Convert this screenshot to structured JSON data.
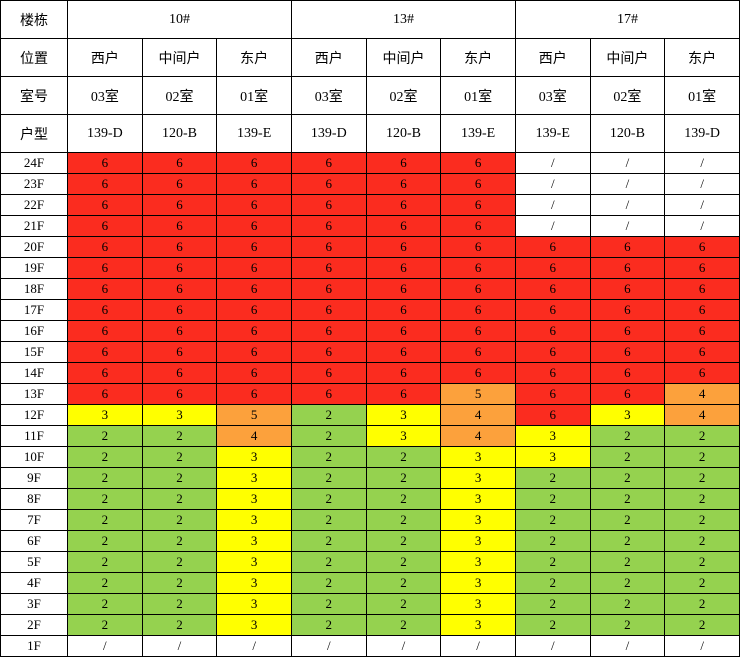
{
  "colors": {
    "red": "#FB2C1F",
    "yellow": "#FFFF00",
    "green": "#95D24F",
    "orange": "#FCA13C",
    "white": "#FFFFFF",
    "border": "#000000"
  },
  "chart_data": {
    "type": "table",
    "header": {
      "row_labels": [
        "楼栋",
        "位置",
        "室号",
        "户型"
      ],
      "buildings": [
        {
          "name": "10#",
          "colspan": 3
        },
        {
          "name": "13#",
          "colspan": 3
        },
        {
          "name": "17#",
          "colspan": 3
        }
      ],
      "positions": [
        "西户",
        "中间户",
        "东户",
        "西户",
        "中间户",
        "东户",
        "西户",
        "中间户",
        "东户"
      ],
      "rooms": [
        "03室",
        "02室",
        "01室",
        "03室",
        "02室",
        "01室",
        "03室",
        "02室",
        "01室"
      ],
      "units": [
        "139-D",
        "120-B",
        "139-E",
        "139-D",
        "120-B",
        "139-E",
        "139-E",
        "120-B",
        "139-D"
      ]
    },
    "value_colors": {
      "2": "green",
      "3": "yellow",
      "4": "orange",
      "5": "orange",
      "6": "red",
      "/": "white"
    },
    "rows": [
      {
        "floor": "24F",
        "values": [
          "6",
          "6",
          "6",
          "6",
          "6",
          "6",
          "/",
          "/",
          "/"
        ]
      },
      {
        "floor": "23F",
        "values": [
          "6",
          "6",
          "6",
          "6",
          "6",
          "6",
          "/",
          "/",
          "/"
        ]
      },
      {
        "floor": "22F",
        "values": [
          "6",
          "6",
          "6",
          "6",
          "6",
          "6",
          "/",
          "/",
          "/"
        ]
      },
      {
        "floor": "21F",
        "values": [
          "6",
          "6",
          "6",
          "6",
          "6",
          "6",
          "/",
          "/",
          "/"
        ]
      },
      {
        "floor": "20F",
        "values": [
          "6",
          "6",
          "6",
          "6",
          "6",
          "6",
          "6",
          "6",
          "6"
        ]
      },
      {
        "floor": "19F",
        "values": [
          "6",
          "6",
          "6",
          "6",
          "6",
          "6",
          "6",
          "6",
          "6"
        ]
      },
      {
        "floor": "18F",
        "values": [
          "6",
          "6",
          "6",
          "6",
          "6",
          "6",
          "6",
          "6",
          "6"
        ]
      },
      {
        "floor": "17F",
        "values": [
          "6",
          "6",
          "6",
          "6",
          "6",
          "6",
          "6",
          "6",
          "6"
        ]
      },
      {
        "floor": "16F",
        "values": [
          "6",
          "6",
          "6",
          "6",
          "6",
          "6",
          "6",
          "6",
          "6"
        ]
      },
      {
        "floor": "15F",
        "values": [
          "6",
          "6",
          "6",
          "6",
          "6",
          "6",
          "6",
          "6",
          "6"
        ]
      },
      {
        "floor": "14F",
        "values": [
          "6",
          "6",
          "6",
          "6",
          "6",
          "6",
          "6",
          "6",
          "6"
        ]
      },
      {
        "floor": "13F",
        "values": [
          "6",
          "6",
          "6",
          "6",
          "6",
          "5",
          "6",
          "6",
          "4"
        ]
      },
      {
        "floor": "12F",
        "values": [
          "3",
          "3",
          "5",
          "2",
          "3",
          "4",
          "6",
          "3",
          "4"
        ]
      },
      {
        "floor": "11F",
        "values": [
          "2",
          "2",
          "4",
          "2",
          "3",
          "4",
          "3",
          "2",
          "2"
        ]
      },
      {
        "floor": "10F",
        "values": [
          "2",
          "2",
          "3",
          "2",
          "2",
          "3",
          "3",
          "2",
          "2"
        ]
      },
      {
        "floor": "9F",
        "values": [
          "2",
          "2",
          "3",
          "2",
          "2",
          "3",
          "2",
          "2",
          "2"
        ]
      },
      {
        "floor": "8F",
        "values": [
          "2",
          "2",
          "3",
          "2",
          "2",
          "3",
          "2",
          "2",
          "2"
        ]
      },
      {
        "floor": "7F",
        "values": [
          "2",
          "2",
          "3",
          "2",
          "2",
          "3",
          "2",
          "2",
          "2"
        ]
      },
      {
        "floor": "6F",
        "values": [
          "2",
          "2",
          "3",
          "2",
          "2",
          "3",
          "2",
          "2",
          "2"
        ]
      },
      {
        "floor": "5F",
        "values": [
          "2",
          "2",
          "3",
          "2",
          "2",
          "3",
          "2",
          "2",
          "2"
        ]
      },
      {
        "floor": "4F",
        "values": [
          "2",
          "2",
          "3",
          "2",
          "2",
          "3",
          "2",
          "2",
          "2"
        ]
      },
      {
        "floor": "3F",
        "values": [
          "2",
          "2",
          "3",
          "2",
          "2",
          "3",
          "2",
          "2",
          "2"
        ]
      },
      {
        "floor": "2F",
        "values": [
          "2",
          "2",
          "3",
          "2",
          "2",
          "3",
          "2",
          "2",
          "2"
        ]
      },
      {
        "floor": "1F",
        "values": [
          "/",
          "/",
          "/",
          "/",
          "/",
          "/",
          "/",
          "/",
          "/"
        ]
      }
    ]
  }
}
